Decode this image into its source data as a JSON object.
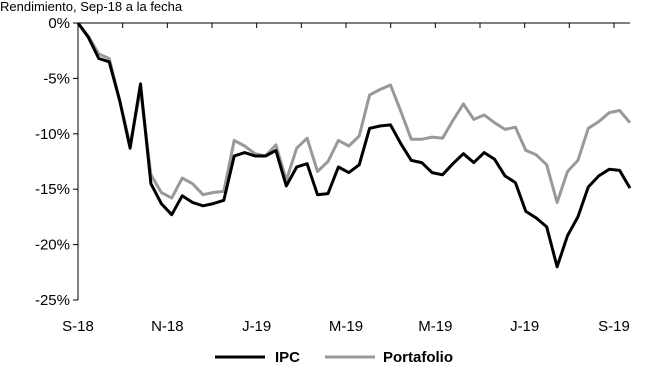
{
  "chart_data": {
    "type": "line",
    "subtitle": "Rendimiento, Sep-18 a la fecha",
    "x_tick_labels": [
      "S-18",
      "N-18",
      "J-19",
      "M-19",
      "M-19",
      "J-19",
      "S-19"
    ],
    "y_ticks": [
      0,
      -5,
      -10,
      -15,
      -20,
      -25
    ],
    "y_tick_labels": [
      "0%",
      "-5%",
      "-10%",
      "-15%",
      "-20%",
      "-25%"
    ],
    "ylim": [
      -25,
      0
    ],
    "grid": false,
    "legend_position": "bottom-center",
    "series": [
      {
        "name": "IPC",
        "color": "#000000",
        "values": [
          0,
          -1.3,
          -3.2,
          -3.5,
          -7.0,
          -11.3,
          -5.5,
          -14.5,
          -16.3,
          -17.3,
          -15.6,
          -16.2,
          -16.5,
          -16.3,
          -16.0,
          -12.0,
          -11.7,
          -12.0,
          -12.0,
          -11.5,
          -14.7,
          -13.0,
          -12.7,
          -15.5,
          -15.4,
          -13.0,
          -13.5,
          -12.8,
          -9.5,
          -9.3,
          -9.2,
          -10.9,
          -12.4,
          -12.6,
          -13.5,
          -13.7,
          -12.7,
          -11.8,
          -12.6,
          -11.7,
          -12.3,
          -13.8,
          -14.4,
          -17.0,
          -17.6,
          -18.4,
          -22.0,
          -19.2,
          -17.5,
          -14.8,
          -13.8,
          -13.2,
          -13.3,
          -14.9
        ]
      },
      {
        "name": "Portafolio",
        "color": "#999999",
        "values": [
          0,
          -1.2,
          -2.8,
          -3.2,
          -7.0,
          -11.0,
          -6.0,
          -13.7,
          -15.3,
          -15.8,
          -14.0,
          -14.5,
          -15.5,
          -15.3,
          -15.2,
          -10.6,
          -11.1,
          -11.8,
          -12.0,
          -11.0,
          -14.2,
          -11.3,
          -10.4,
          -13.4,
          -12.5,
          -10.6,
          -11.1,
          -10.2,
          -6.5,
          -6.0,
          -5.6,
          -8.0,
          -10.5,
          -10.5,
          -10.3,
          -10.4,
          -8.8,
          -7.3,
          -8.7,
          -8.3,
          -9.0,
          -9.6,
          -9.4,
          -11.5,
          -11.9,
          -12.8,
          -16.2,
          -13.4,
          -12.4,
          -9.5,
          -8.9,
          -8.1,
          -7.9,
          -9.0
        ]
      }
    ]
  }
}
